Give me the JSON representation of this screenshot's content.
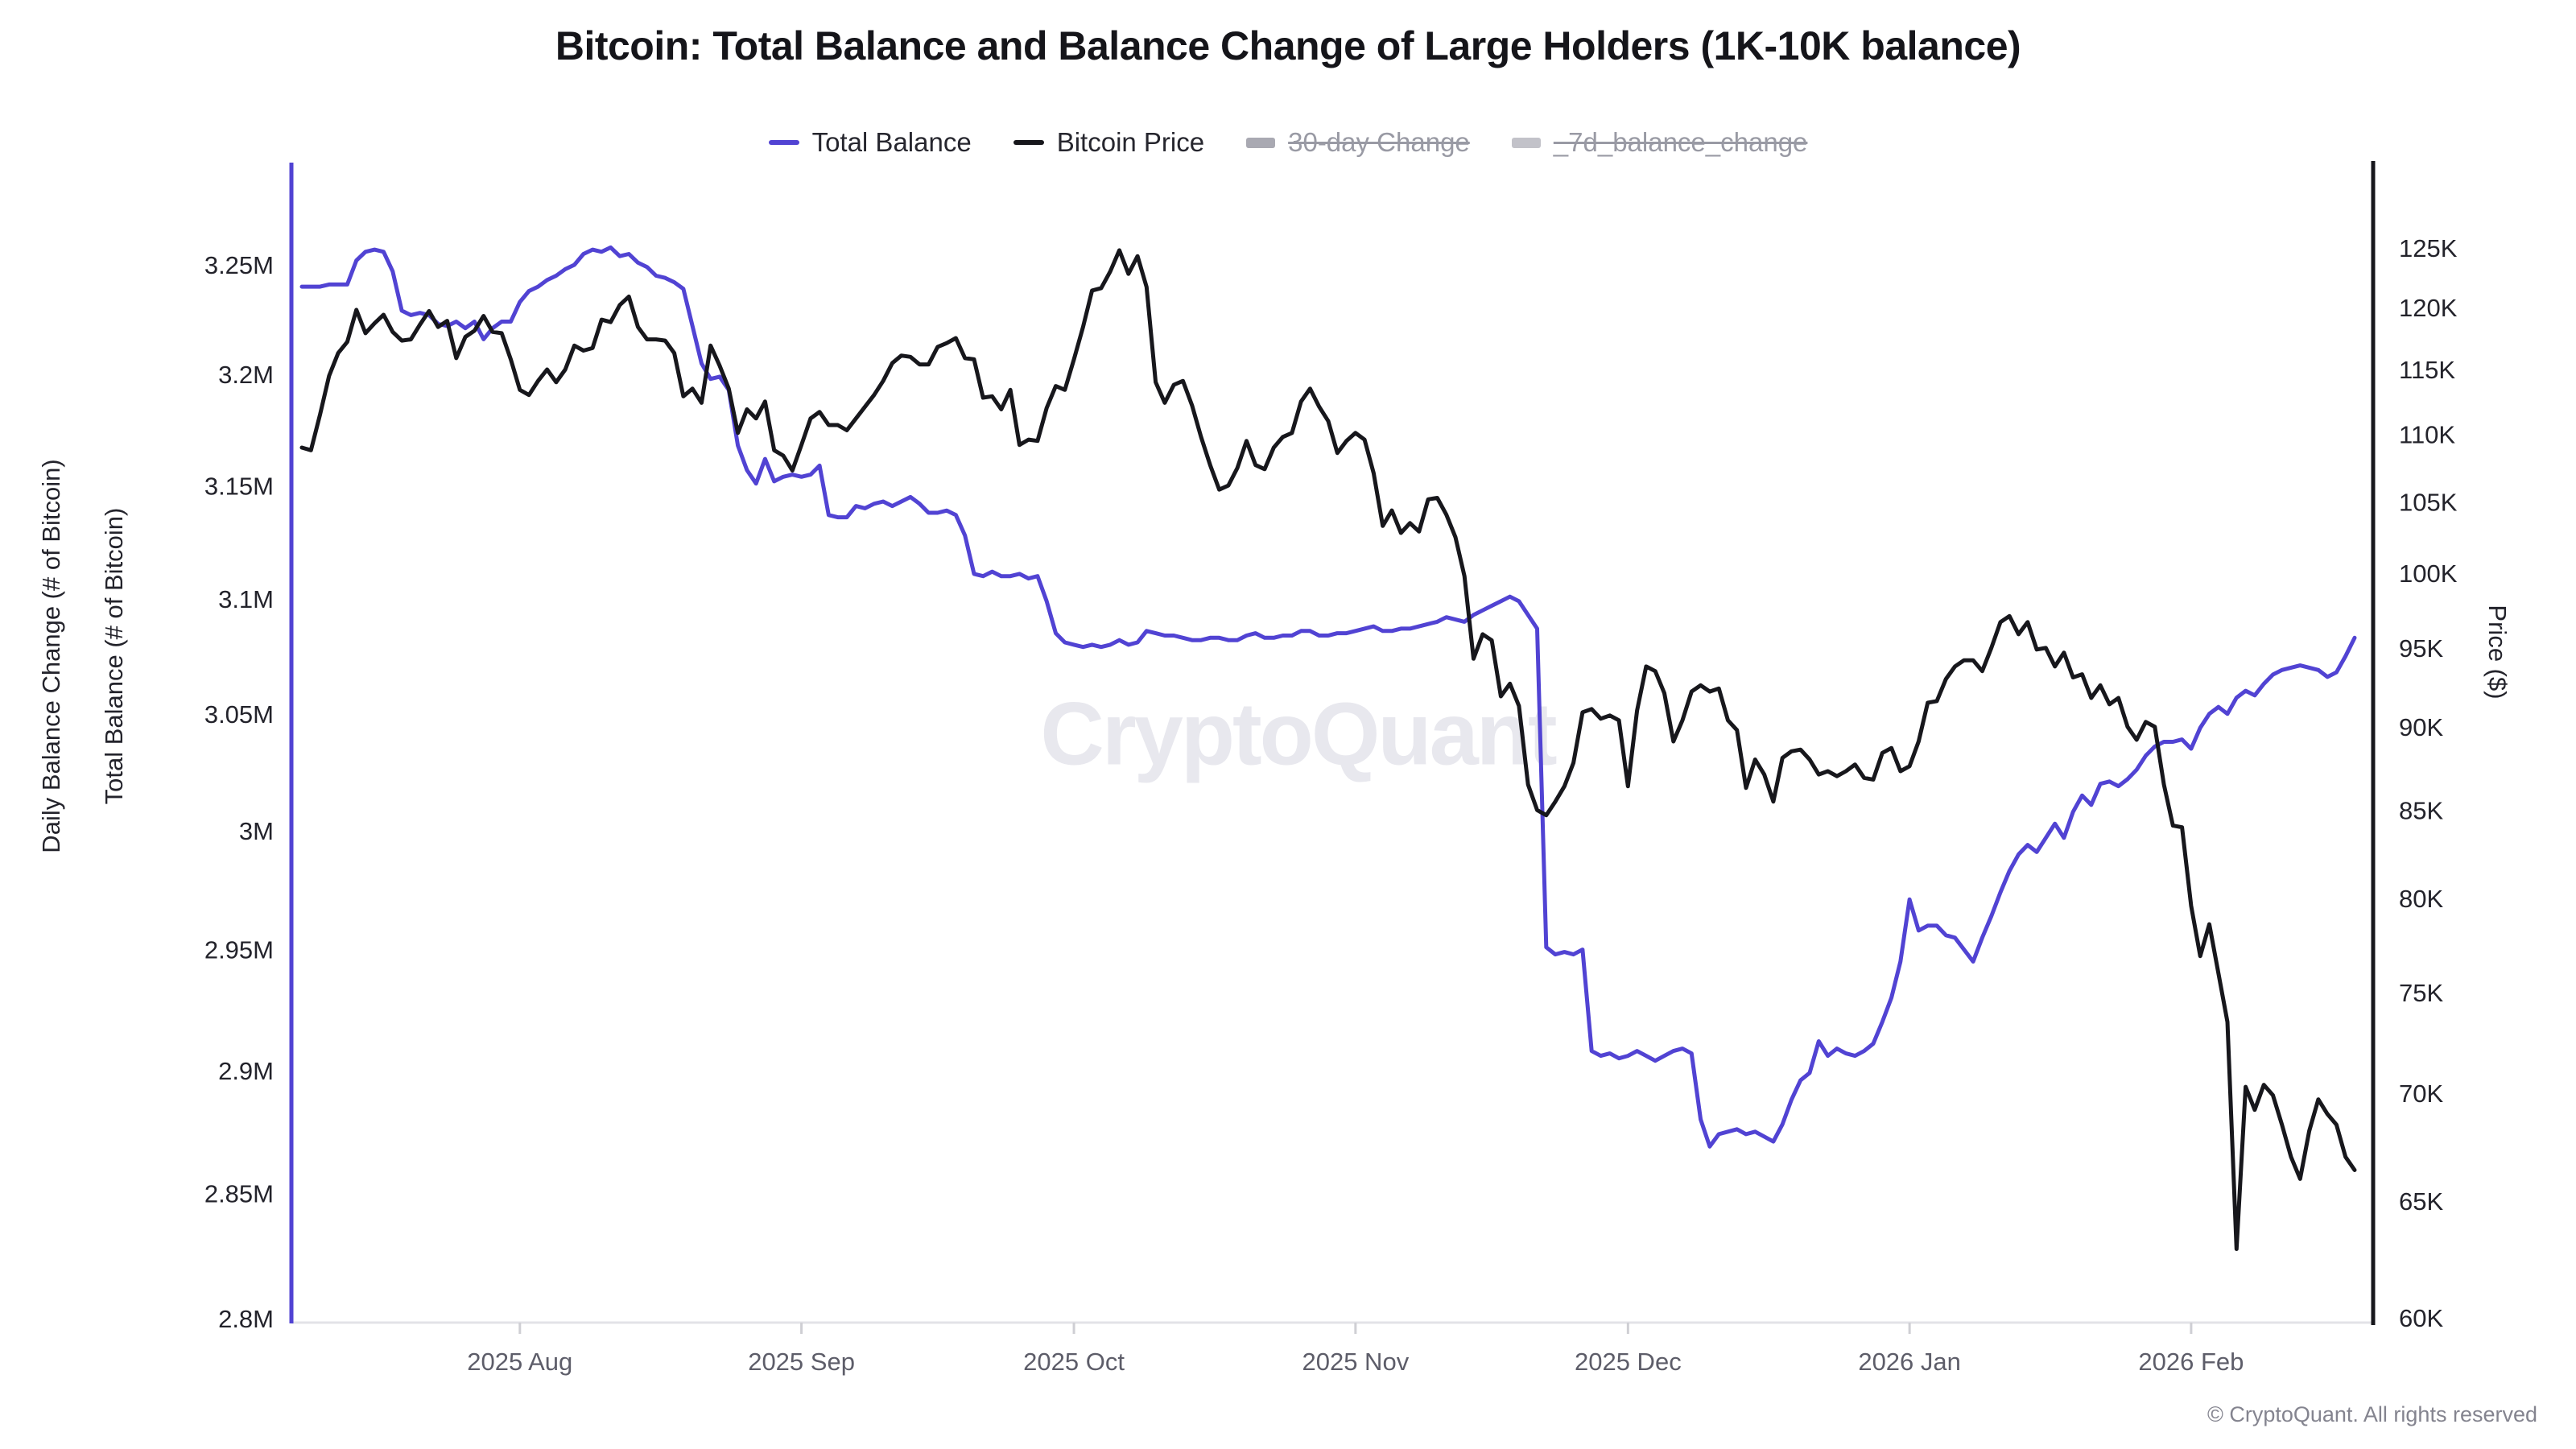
{
  "title": "Bitcoin: Total Balance and Balance Change of Large Holders (1K-10K balance)",
  "watermark": "CryptoQuant",
  "copyright": "© CryptoQuant. All rights reserved",
  "colors": {
    "total_balance_purple": "#5143d3",
    "bitcoin_price_black": "#17171c",
    "disabled_gray": "#a9a9b2",
    "disabled_gray_light": "#c2c2c9",
    "baseline_gray": "#e3e3e7",
    "tick_gray": "#cfcfd4",
    "watermark_gray": "#e8e8ee"
  },
  "legend": [
    {
      "label": "Total Balance",
      "marker": "line",
      "color": "#5143d3",
      "disabled": false
    },
    {
      "label": "Bitcoin Price",
      "marker": "line",
      "color": "#17171c",
      "disabled": false
    },
    {
      "label": "30-day Change",
      "marker": "bar",
      "color": "#a9a9b2",
      "disabled": true
    },
    {
      "label": "_7d_balance_change",
      "marker": "bar",
      "color": "#c2c2c9",
      "disabled": true
    }
  ],
  "axis_titles": {
    "left_outer": "Daily Balance Change (# of Bitcoin)",
    "left_inner": "Total Balance (# of Bitcoin)",
    "right": "Price ($)"
  },
  "chart_data": {
    "type": "line",
    "title": "Bitcoin: Total Balance and Balance Change of Large Holders (1K-10K balance)",
    "x_unit": "days since 2025-07-08, daily resolution",
    "x_domain": [
      0,
      226
    ],
    "x_ticks": [
      {
        "label": "2025 Aug",
        "day": 24
      },
      {
        "label": "2025 Sep",
        "day": 55
      },
      {
        "label": "2025 Oct",
        "day": 85
      },
      {
        "label": "2025 Nov",
        "day": 116
      },
      {
        "label": "2025 Dec",
        "day": 146
      },
      {
        "label": "2026 Jan",
        "day": 177
      },
      {
        "label": "2026 Feb",
        "day": 208
      }
    ],
    "left_axis": {
      "title": "Total Balance (# of Bitcoin)",
      "scale": "log",
      "unit": "M BTC",
      "range": [
        2.8,
        3.25
      ],
      "ticks": [
        {
          "label": "3.25M",
          "value": 3.25
        },
        {
          "label": "3.2M",
          "value": 3.2
        },
        {
          "label": "3.15M",
          "value": 3.15
        },
        {
          "label": "3.1M",
          "value": 3.1
        },
        {
          "label": "3.05M",
          "value": 3.05
        },
        {
          "label": "3M",
          "value": 3.0
        },
        {
          "label": "2.95M",
          "value": 2.95
        },
        {
          "label": "2.9M",
          "value": 2.9
        },
        {
          "label": "2.85M",
          "value": 2.85
        },
        {
          "label": "2.8M",
          "value": 2.8
        }
      ]
    },
    "right_axis": {
      "title": "Price ($)",
      "scale": "log",
      "unit": "K USD",
      "range": [
        60,
        125
      ],
      "ticks": [
        {
          "label": "125K",
          "value": 125
        },
        {
          "label": "120K",
          "value": 120
        },
        {
          "label": "115K",
          "value": 115
        },
        {
          "label": "110K",
          "value": 110
        },
        {
          "label": "105K",
          "value": 105
        },
        {
          "label": "100K",
          "value": 100
        },
        {
          "label": "95K",
          "value": 95
        },
        {
          "label": "90K",
          "value": 90
        },
        {
          "label": "85K",
          "value": 85
        },
        {
          "label": "80K",
          "value": 80
        },
        {
          "label": "75K",
          "value": 75
        },
        {
          "label": "70K",
          "value": 70
        },
        {
          "label": "65K",
          "value": 65
        },
        {
          "label": "60K",
          "value": 60
        }
      ]
    },
    "series": [
      {
        "name": "Total Balance",
        "axis": "left",
        "color": "#5143d3",
        "x_start": 0,
        "x_step": 1,
        "values": [
          3.24,
          3.24,
          3.24,
          3.241,
          3.241,
          3.241,
          3.252,
          3.256,
          3.257,
          3.256,
          3.247,
          3.229,
          3.227,
          3.228,
          3.227,
          3.223,
          3.222,
          3.224,
          3.221,
          3.224,
          3.216,
          3.221,
          3.224,
          3.224,
          3.233,
          3.238,
          3.24,
          3.243,
          3.245,
          3.248,
          3.25,
          3.255,
          3.257,
          3.256,
          3.258,
          3.254,
          3.255,
          3.251,
          3.249,
          3.245,
          3.244,
          3.242,
          3.239,
          3.222,
          3.205,
          3.198,
          3.199,
          3.193,
          3.168,
          3.157,
          3.151,
          3.162,
          3.152,
          3.154,
          3.155,
          3.154,
          3.155,
          3.159,
          3.137,
          3.136,
          3.136,
          3.141,
          3.14,
          3.142,
          3.143,
          3.141,
          3.143,
          3.145,
          3.142,
          3.138,
          3.138,
          3.139,
          3.137,
          3.128,
          3.111,
          3.11,
          3.112,
          3.11,
          3.11,
          3.111,
          3.109,
          3.11,
          3.099,
          3.085,
          3.081,
          3.08,
          3.079,
          3.08,
          3.079,
          3.08,
          3.082,
          3.08,
          3.081,
          3.086,
          3.085,
          3.084,
          3.084,
          3.083,
          3.082,
          3.082,
          3.083,
          3.083,
          3.082,
          3.082,
          3.084,
          3.085,
          3.083,
          3.083,
          3.084,
          3.084,
          3.086,
          3.086,
          3.084,
          3.084,
          3.085,
          3.085,
          3.086,
          3.087,
          3.088,
          3.086,
          3.086,
          3.087,
          3.087,
          3.088,
          3.089,
          3.09,
          3.092,
          3.091,
          3.09,
          3.093,
          3.095,
          3.097,
          3.099,
          3.101,
          3.099,
          3.093,
          3.087,
          2.951,
          2.948,
          2.949,
          2.948,
          2.95,
          2.908,
          2.906,
          2.907,
          2.905,
          2.906,
          2.908,
          2.906,
          2.904,
          2.906,
          2.908,
          2.909,
          2.907,
          2.88,
          2.869,
          2.874,
          2.875,
          2.876,
          2.874,
          2.875,
          2.873,
          2.871,
          2.878,
          2.888,
          2.896,
          2.899,
          2.912,
          2.906,
          2.909,
          2.907,
          2.906,
          2.908,
          2.911,
          2.92,
          2.93,
          2.945,
          2.971,
          2.958,
          2.96,
          2.96,
          2.956,
          2.955,
          2.95,
          2.945,
          2.955,
          2.964,
          2.974,
          2.983,
          2.99,
          2.994,
          2.991,
          2.997,
          3.003,
          2.997,
          3.008,
          3.015,
          3.011,
          3.02,
          3.021,
          3.019,
          3.022,
          3.026,
          3.032,
          3.036,
          3.038,
          3.038,
          3.039,
          3.035,
          3.044,
          3.05,
          3.053,
          3.05,
          3.057,
          3.06,
          3.058,
          3.063,
          3.067,
          3.069,
          3.07,
          3.071,
          3.07,
          3.069,
          3.066,
          3.068,
          3.075,
          3.083
        ]
      },
      {
        "name": "Bitcoin Price",
        "axis": "right",
        "color": "#17171c",
        "x_start": 0,
        "x_step": 1,
        "values": [
          109.0,
          108.8,
          111.5,
          114.5,
          116.3,
          117.2,
          119.8,
          117.9,
          118.7,
          119.4,
          118.0,
          117.3,
          117.4,
          118.6,
          119.7,
          118.4,
          118.9,
          115.9,
          117.6,
          118.1,
          119.3,
          118.0,
          117.9,
          115.8,
          113.4,
          113.0,
          114.1,
          115.0,
          114.0,
          115.0,
          116.9,
          116.5,
          116.7,
          119.0,
          118.8,
          120.2,
          120.9,
          118.4,
          117.4,
          117.4,
          117.3,
          116.3,
          112.9,
          113.5,
          112.4,
          116.9,
          115.3,
          113.5,
          110.1,
          111.9,
          111.2,
          112.5,
          108.8,
          108.4,
          107.3,
          109.2,
          111.2,
          111.7,
          110.7,
          110.7,
          110.3,
          111.2,
          112.1,
          113.0,
          114.1,
          115.5,
          116.1,
          116.0,
          115.4,
          115.4,
          116.8,
          117.1,
          117.5,
          115.9,
          115.8,
          112.8,
          112.9,
          111.9,
          113.4,
          109.2,
          109.6,
          109.5,
          112.0,
          113.7,
          113.4,
          115.8,
          118.4,
          121.4,
          121.6,
          123.0,
          124.8,
          122.8,
          124.3,
          121.7,
          114.0,
          112.4,
          113.8,
          114.1,
          112.2,
          109.8,
          107.7,
          105.9,
          106.2,
          107.5,
          109.5,
          107.7,
          107.4,
          109.0,
          109.8,
          110.1,
          112.5,
          113.5,
          112.1,
          111.0,
          108.6,
          109.5,
          110.1,
          109.6,
          107.1,
          103.3,
          104.4,
          102.8,
          103.5,
          102.9,
          105.2,
          105.3,
          104.1,
          102.5,
          99.8,
          94.3,
          95.9,
          95.5,
          91.9,
          92.7,
          91.3,
          86.5,
          85.0,
          84.7,
          85.5,
          86.4,
          87.8,
          90.9,
          91.1,
          90.5,
          90.7,
          90.4,
          86.4,
          91.0,
          93.8,
          93.5,
          92.1,
          89.1,
          90.4,
          92.2,
          92.6,
          92.2,
          92.4,
          90.4,
          89.8,
          86.3,
          88.0,
          87.1,
          85.5,
          88.1,
          88.5,
          88.6,
          88.0,
          87.1,
          87.3,
          87.0,
          87.3,
          87.7,
          86.9,
          86.8,
          88.4,
          88.7,
          87.3,
          87.6,
          89.1,
          91.5,
          91.6,
          93.0,
          93.8,
          94.2,
          94.2,
          93.5,
          95.0,
          96.7,
          97.1,
          95.9,
          96.7,
          94.9,
          95.0,
          93.8,
          94.7,
          93.1,
          93.3,
          91.8,
          92.6,
          91.4,
          91.8,
          90.0,
          89.2,
          90.3,
          90.0,
          86.5,
          84.1,
          84.0,
          79.6,
          76.9,
          78.6,
          76.0,
          73.5,
          62.9,
          70.3,
          69.2,
          70.4,
          69.9,
          68.5,
          67.0,
          66.0,
          68.2,
          69.7,
          69.0,
          68.5,
          67.0,
          66.4
        ]
      }
    ]
  }
}
